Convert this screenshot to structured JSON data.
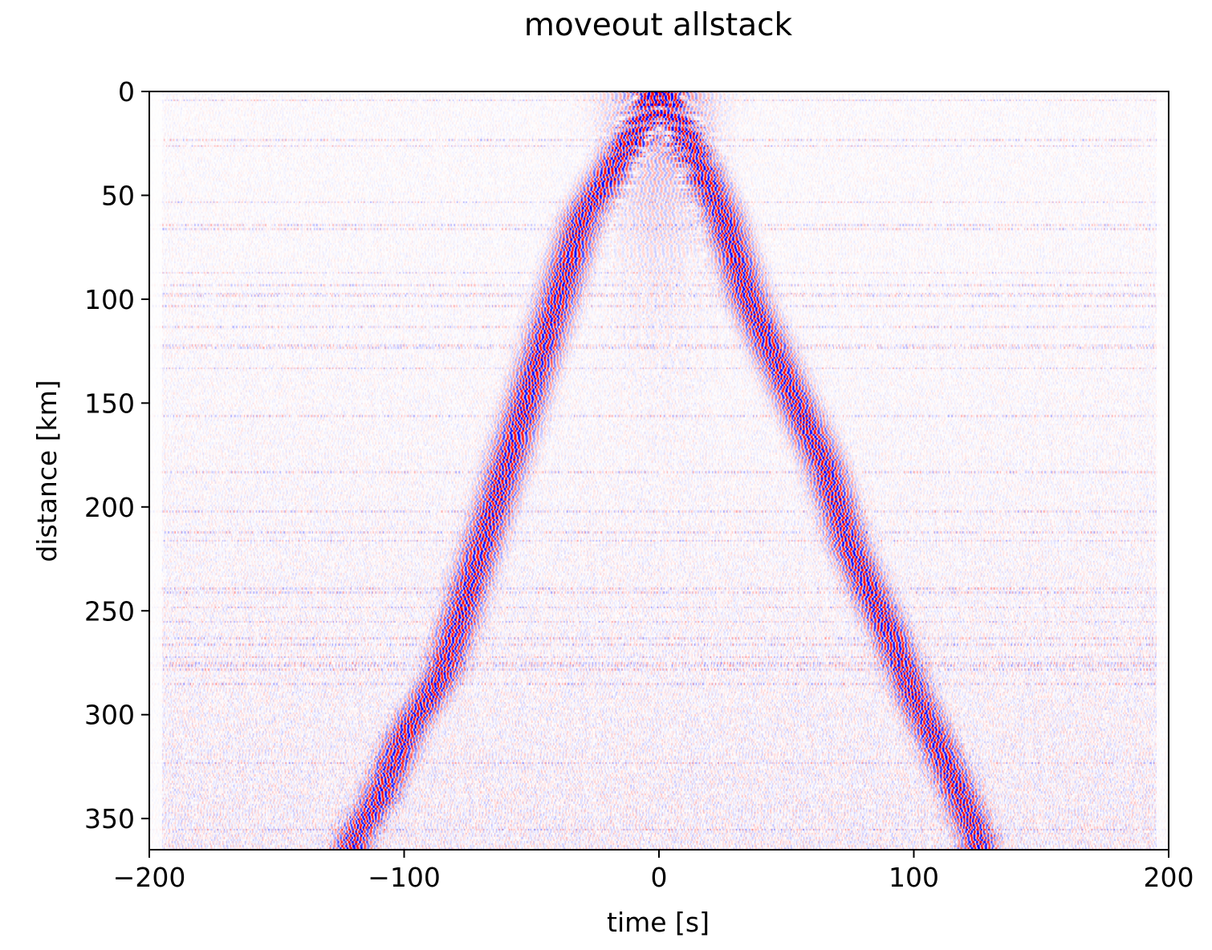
{
  "chart_data": {
    "type": "heatmap",
    "title": "moveout allstack",
    "xlabel": "time [s]",
    "ylabel": "distance [km]",
    "xlim": [
      -200,
      200
    ],
    "ylim": [
      365,
      0
    ],
    "xticks": [
      -200,
      -100,
      0,
      100,
      200
    ],
    "xtick_labels": [
      "−200",
      "−100",
      "0",
      "100",
      "200"
    ],
    "yticks": [
      0,
      50,
      100,
      150,
      200,
      250,
      300,
      350
    ],
    "ytick_labels": [
      "0",
      "50",
      "100",
      "150",
      "200",
      "250",
      "300",
      "350"
    ],
    "colormap": "seismic",
    "color_negative": "#0000ff",
    "color_zero": "#ffffff",
    "color_positive": "#ff0000",
    "grid": false,
    "legend": false,
    "moveout_branches": [
      {
        "name": "",
        "points": [
          [
            0,
            0
          ],
          [
            -10,
            20
          ],
          [
            -30,
            60
          ],
          [
            -40,
            100
          ],
          [
            -50,
            140
          ],
          [
            -65,
            200
          ],
          [
            -75,
            240
          ],
          [
            -85,
            280
          ],
          [
            -100,
            310
          ],
          [
            -110,
            340
          ],
          [
            -120,
            360
          ]
        ]
      },
      {
        "name": "",
        "points": [
          [
            0,
            0
          ],
          [
            10,
            20
          ],
          [
            25,
            60
          ],
          [
            35,
            100
          ],
          [
            50,
            140
          ],
          [
            65,
            180
          ],
          [
            75,
            220
          ],
          [
            90,
            260
          ],
          [
            100,
            290
          ],
          [
            115,
            330
          ],
          [
            125,
            360
          ]
        ]
      }
    ]
  }
}
